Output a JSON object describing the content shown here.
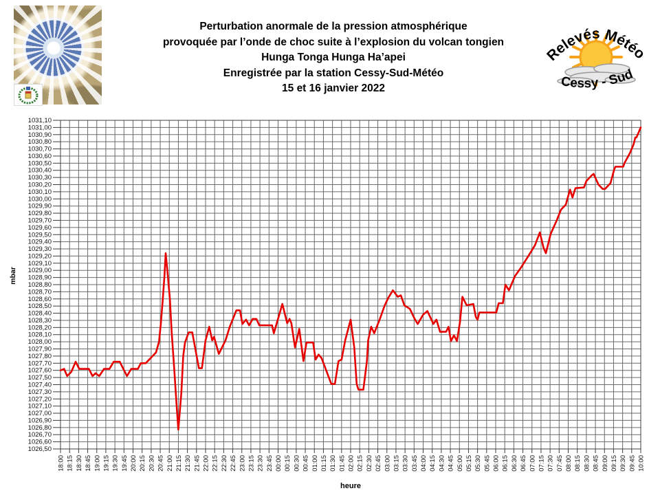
{
  "header": {
    "title_lines": [
      "Perturbation anormale de la pression atmosphérique",
      "provoquée par l’onde de choc suite à l’explosion du volcan tongien",
      "Hunga Tonga Hunga Ha’apei",
      "Enregistrée par la station Cessy-Sud-Météo",
      "15 et 16 janvier 2022"
    ],
    "logo": {
      "top_text": "Relevés Météo",
      "bottom_text": "Cessy - Sud"
    }
  },
  "chart_data": {
    "type": "line",
    "title": "",
    "xlabel": "heure",
    "ylabel": "mbar",
    "grid": true,
    "legend": "none",
    "colors": {
      "line": "#e60000",
      "grid": "#6a6a6a",
      "axis": "#3c3c3c",
      "tick_text": "#111111"
    },
    "x_range_minutes": [
      0,
      960
    ],
    "y_range": [
      1026.5,
      1031.1
    ],
    "x_tick_labels": [
      "18:00",
      "18:15",
      "18:30",
      "18:45",
      "19:00",
      "19:15",
      "19:30",
      "19:45",
      "20:00",
      "20:15",
      "20:30",
      "20:45",
      "21:00",
      "21:15",
      "21:30",
      "21:45",
      "22:00",
      "22:15",
      "22:30",
      "22:45",
      "23:00",
      "23:15",
      "23:30",
      "23:45",
      "00:00",
      "00:15",
      "00:30",
      "00:45",
      "01:00",
      "01:15",
      "01:30",
      "01:45",
      "02:00",
      "02:15",
      "02:30",
      "02:45",
      "03:00",
      "03:15",
      "03:30",
      "03:45",
      "04:00",
      "04:15",
      "04:30",
      "04:45",
      "05:00",
      "05:15",
      "05:30",
      "05:45",
      "06:00",
      "06:15",
      "06:30",
      "06:45",
      "07:00",
      "07:15",
      "07:30",
      "07:45",
      "08:00",
      "08:15",
      "08:30",
      "08:45",
      "09:00",
      "09:15",
      "09:30",
      "09:45",
      "10:00"
    ],
    "y_tick_labels": [
      "1031,10",
      "1031,00",
      "1030,90",
      "1030,80",
      "1030,70",
      "1030,60",
      "1030,50",
      "1030,40",
      "1030,30",
      "1030,20",
      "1030,10",
      "1030,00",
      "1029,90",
      "1029,80",
      "1029,70",
      "1029,60",
      "1029,50",
      "1029,40",
      "1029,30",
      "1029,20",
      "1029,10",
      "1029,00",
      "1028,90",
      "1028,80",
      "1028,70",
      "1028,60",
      "1028,50",
      "1028,40",
      "1028,30",
      "1028,20",
      "1028,10",
      "1028,00",
      "1027,90",
      "1027,80",
      "1027,70",
      "1027,60",
      "1027,50",
      "1027,40",
      "1027,30",
      "1027,20",
      "1027,10",
      "1027,00",
      "1026,90",
      "1026,80",
      "1026,70",
      "1026,60",
      "1026,50"
    ],
    "series": [
      {
        "name": "pression atmosphérique (mbar)",
        "x_unit": "minutes depuis 18:00",
        "points": [
          [
            0,
            1027.6
          ],
          [
            6,
            1027.62
          ],
          [
            11,
            1027.52
          ],
          [
            18,
            1027.58
          ],
          [
            25,
            1027.72
          ],
          [
            31,
            1027.62
          ],
          [
            38,
            1027.62
          ],
          [
            47,
            1027.62
          ],
          [
            53,
            1027.52
          ],
          [
            58,
            1027.56
          ],
          [
            64,
            1027.52
          ],
          [
            72,
            1027.62
          ],
          [
            81,
            1027.62
          ],
          [
            88,
            1027.72
          ],
          [
            98,
            1027.72
          ],
          [
            104,
            1027.62
          ],
          [
            110,
            1027.52
          ],
          [
            117,
            1027.62
          ],
          [
            128,
            1027.62
          ],
          [
            133,
            1027.7
          ],
          [
            141,
            1027.7
          ],
          [
            150,
            1027.78
          ],
          [
            158,
            1027.85
          ],
          [
            163,
            1028.0
          ],
          [
            166,
            1028.25
          ],
          [
            169,
            1028.57
          ],
          [
            172,
            1028.92
          ],
          [
            174,
            1029.24
          ],
          [
            177,
            1028.98
          ],
          [
            181,
            1028.6
          ],
          [
            184,
            1028.12
          ],
          [
            188,
            1027.64
          ],
          [
            192,
            1027.12
          ],
          [
            195,
            1026.77
          ],
          [
            200,
            1027.29
          ],
          [
            203,
            1027.8
          ],
          [
            206,
            1027.99
          ],
          [
            212,
            1028.13
          ],
          [
            218,
            1028.13
          ],
          [
            224,
            1027.86
          ],
          [
            229,
            1027.63
          ],
          [
            234,
            1027.63
          ],
          [
            240,
            1028.02
          ],
          [
            246,
            1028.21
          ],
          [
            251,
            1028.02
          ],
          [
            254,
            1028.07
          ],
          [
            262,
            1027.83
          ],
          [
            273,
            1028.02
          ],
          [
            280,
            1028.21
          ],
          [
            291,
            1028.44
          ],
          [
            297,
            1028.44
          ],
          [
            301,
            1028.25
          ],
          [
            307,
            1028.31
          ],
          [
            312,
            1028.23
          ],
          [
            318,
            1028.32
          ],
          [
            324,
            1028.32
          ],
          [
            329,
            1028.23
          ],
          [
            350,
            1028.23
          ],
          [
            353,
            1028.12
          ],
          [
            367,
            1028.53
          ],
          [
            375,
            1028.26
          ],
          [
            379,
            1028.32
          ],
          [
            382,
            1028.26
          ],
          [
            388,
            1027.92
          ],
          [
            395,
            1028.18
          ],
          [
            402,
            1027.73
          ],
          [
            407,
            1027.99
          ],
          [
            418,
            1027.99
          ],
          [
            422,
            1027.75
          ],
          [
            427,
            1027.82
          ],
          [
            432,
            1027.77
          ],
          [
            448,
            1027.41
          ],
          [
            454,
            1027.41
          ],
          [
            460,
            1027.73
          ],
          [
            465,
            1027.75
          ],
          [
            471,
            1028.02
          ],
          [
            480,
            1028.31
          ],
          [
            486,
            1027.92
          ],
          [
            490,
            1027.41
          ],
          [
            493,
            1027.33
          ],
          [
            501,
            1027.33
          ],
          [
            507,
            1027.73
          ],
          [
            509,
            1028.02
          ],
          [
            514,
            1028.21
          ],
          [
            519,
            1028.12
          ],
          [
            528,
            1028.31
          ],
          [
            536,
            1028.5
          ],
          [
            542,
            1028.61
          ],
          [
            550,
            1028.72
          ],
          [
            558,
            1028.63
          ],
          [
            563,
            1028.65
          ],
          [
            569,
            1028.51
          ],
          [
            578,
            1028.46
          ],
          [
            586,
            1028.32
          ],
          [
            591,
            1028.25
          ],
          [
            600,
            1028.38
          ],
          [
            607,
            1028.43
          ],
          [
            617,
            1028.25
          ],
          [
            622,
            1028.31
          ],
          [
            628,
            1028.14
          ],
          [
            638,
            1028.14
          ],
          [
            642,
            1028.21
          ],
          [
            646,
            1028.01
          ],
          [
            651,
            1028.09
          ],
          [
            656,
            1028.01
          ],
          [
            661,
            1028.28
          ],
          [
            665,
            1028.63
          ],
          [
            672,
            1028.51
          ],
          [
            683,
            1028.53
          ],
          [
            687,
            1028.35
          ],
          [
            690,
            1028.31
          ],
          [
            693,
            1028.41
          ],
          [
            721,
            1028.41
          ],
          [
            725,
            1028.54
          ],
          [
            732,
            1028.54
          ],
          [
            736,
            1028.8
          ],
          [
            742,
            1028.72
          ],
          [
            752,
            1028.92
          ],
          [
            762,
            1029.04
          ],
          [
            774,
            1029.2
          ],
          [
            785,
            1029.35
          ],
          [
            793,
            1029.53
          ],
          [
            799,
            1029.32
          ],
          [
            803,
            1029.24
          ],
          [
            811,
            1029.51
          ],
          [
            821,
            1029.7
          ],
          [
            828,
            1029.85
          ],
          [
            836,
            1029.92
          ],
          [
            843,
            1030.13
          ],
          [
            847,
            1030.02
          ],
          [
            852,
            1030.15
          ],
          [
            866,
            1030.16
          ],
          [
            870,
            1030.25
          ],
          [
            879,
            1030.33
          ],
          [
            882,
            1030.35
          ],
          [
            890,
            1030.2
          ],
          [
            897,
            1030.14
          ],
          [
            901,
            1030.14
          ],
          [
            910,
            1030.22
          ],
          [
            916,
            1030.41
          ],
          [
            918,
            1030.45
          ],
          [
            931,
            1030.45
          ],
          [
            933,
            1030.5
          ],
          [
            942,
            1030.64
          ],
          [
            948,
            1030.76
          ],
          [
            951,
            1030.86
          ],
          [
            953,
            1030.86
          ],
          [
            960,
            1031.0
          ]
        ]
      }
    ]
  }
}
